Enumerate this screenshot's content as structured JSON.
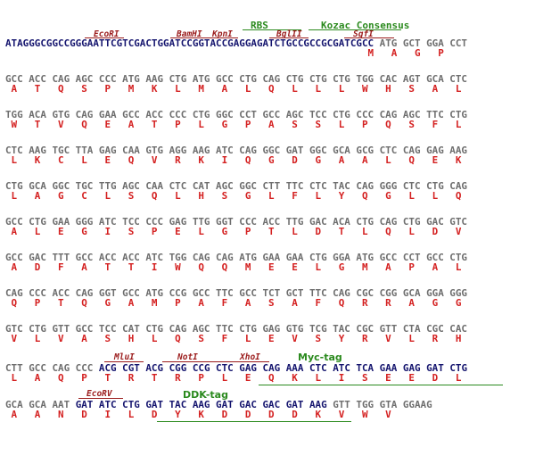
{
  "header_labels": {
    "ecori": "EcoRI",
    "bamhi": "BamHI",
    "kpni": "KpnI",
    "rbs": "RBS",
    "bglii": "BglII",
    "kozac": "Kozac Consensus",
    "sgfi": "SgfI"
  },
  "row1": {
    "dna_prefix": "ATAGGGCGGCCGGGAATTCGTCGACTGGATCCGGTACCGAGGAGATCTGCCGCCGCGATCGCC",
    "dna_codons": " ATG GCT GGA CCT",
    "aa": "                                                              M   A   G   P"
  },
  "rows": [
    {
      "dna": "GCC ACC CAG AGC CCC ATG AAG CTG ATG GCC CTG CAG CTG CTG CTG TGG CAC AGT GCA CTC",
      "aa": " A   T   Q   S   P   M   K   L   M   A   L   Q   L   L   L   W   H   S   A   L"
    },
    {
      "dna": "TGG ACA GTG CAG GAA GCC ACC CCC CTG GGC CCT GCC AGC TCC CTG CCC CAG AGC TTC CTG",
      "aa": " W   T   V   Q   E   A   T   P   L   G   P   A   S   S   L   P   Q   S   F   L"
    },
    {
      "dna": "CTC AAG TGC TTA GAG CAA GTG AGG AAG ATC CAG GGC GAT GGC GCA GCG CTC CAG GAG AAG",
      "aa": " L   K   C   L   E   Q   V   R   K   I   Q   G   D   G   A   A   L   Q   E   K"
    },
    {
      "dna": "CTG GCA GGC TGC TTG AGC CAA CTC CAT AGC GGC CTT TTC CTC TAC CAG GGG CTC CTG CAG",
      "aa": " L   A   G   C   L   S   Q   L   H   S   G   L   F   L   Y   Q   G   L   L   Q"
    },
    {
      "dna": "GCC CTG GAA GGG ATC TCC CCC GAG TTG GGT CCC ACC TTG GAC ACA CTG CAG CTG GAC GTC",
      "aa": " A   L   E   G   I   S   P   E   L   G   P   T   L   D   T   L   Q   L   D   V"
    },
    {
      "dna": "GCC GAC TTT GCC ACC ACC ATC TGG CAG CAG ATG GAA GAA CTG GGA ATG GCC CCT GCC CTG",
      "aa": " A   D   F   A   T   T   I   W   Q   Q   M   E   E   L   G   M   A   P   A   L"
    },
    {
      "dna": "CAG CCC ACC CAG GGT GCC ATG CCG GCC TTC GCC TCT GCT TTC CAG CGC CGG GCA GGA GGG",
      "aa": " Q   P   T   Q   G   A   M   P   A   F   A   S   A   F   Q   R   R   A   G   G"
    },
    {
      "dna": "GTC CTG GTT GCC TCC CAT CTG CAG AGC TTC CTG GAG GTG TCG TAC CGC GTT CTA CGC CAC",
      "aa": " V   L   V   A   S   H   L   Q   S   F   L   E   V   S   Y   R   V   L   R   H"
    }
  ],
  "row10": {
    "dna_a": "CTT GCC CAG CCC ",
    "dna_b": "ACG CGT ACG CGG CCG CTC ",
    "dna_c": "GAG CAG AAA CTC ATC TCA GAA GAG GAT CTG",
    "aa": " L   A   Q   P   T   R   T   R   P   L   E   Q   K   L   I   S   E   E   D   L",
    "mlui": "MluI",
    "noti": "NotI",
    "xhoi": "XhoI",
    "myc": "Myc-tag"
  },
  "row11": {
    "dna_a": "GCA GCA AAT ",
    "dna_b": "GAT ATC CTG GAT TAC AAG GAT GAC GAC GAT AAG ",
    "dna_c": "GTT TGG GTA GGAAG",
    "aa": " A   A   N   D   I   L   D   Y   K   D   D   D   D   K   V   W   V",
    "ecorv": "EcoRV",
    "ddk": "DDK-tag"
  }
}
